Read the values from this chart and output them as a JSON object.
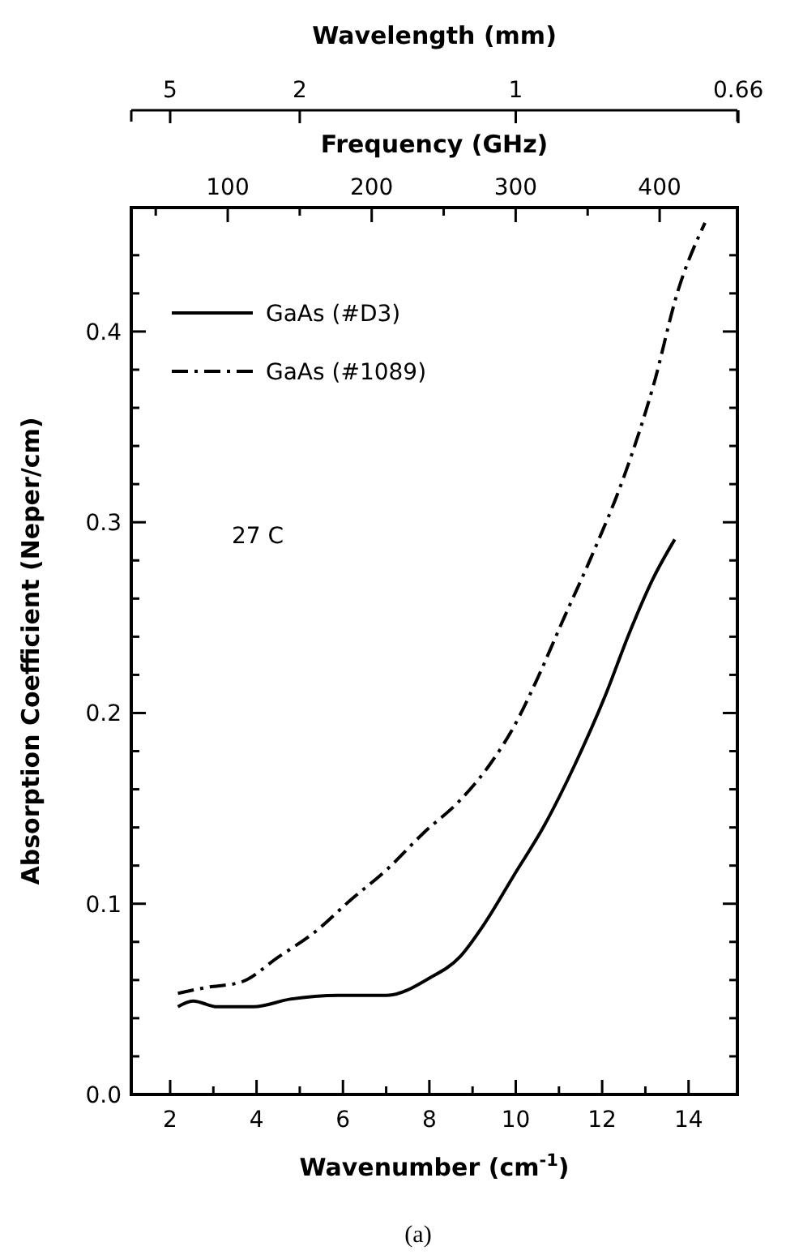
{
  "chart_data": {
    "type": "line",
    "xlabel": "Wavenumber (cm$^{-1}$)",
    "ylabel": "Absorption Coefficient (Neper/cm)",
    "x2label": "Frequency (GHz)",
    "xlim": [
      1.1,
      15.13
    ],
    "xticks": [
      {
        "value": 2,
        "label": "2"
      },
      {
        "value": 3,
        "label": null
      },
      {
        "value": 4,
        "label": "4"
      },
      {
        "value": 5,
        "label": null
      },
      {
        "value": 6,
        "label": "6"
      },
      {
        "value": 7,
        "label": null
      },
      {
        "value": 8,
        "label": "8"
      },
      {
        "value": 9,
        "label": null
      },
      {
        "value": 10,
        "label": "10"
      },
      {
        "value": 11,
        "label": null
      },
      {
        "value": 12,
        "label": "12"
      },
      {
        "value": 13,
        "label": null
      },
      {
        "value": 14,
        "label": "14"
      }
    ],
    "ylim": [
      0,
      0.465
    ],
    "yticks": [
      {
        "value": 0,
        "label": "0.0"
      },
      {
        "value": 0.02,
        "label": null
      },
      {
        "value": 0.04,
        "label": null
      },
      {
        "value": 0.06,
        "label": null
      },
      {
        "value": 0.08,
        "label": null
      },
      {
        "value": 0.1,
        "label": "0.1"
      },
      {
        "value": 0.12,
        "label": null
      },
      {
        "value": 0.14,
        "label": null
      },
      {
        "value": 0.16,
        "label": null
      },
      {
        "value": 0.18,
        "label": null
      },
      {
        "value": 0.2,
        "label": "0.2"
      },
      {
        "value": 0.22,
        "label": null
      },
      {
        "value": 0.24,
        "label": null
      },
      {
        "value": 0.26,
        "label": null
      },
      {
        "value": 0.28,
        "label": null
      },
      {
        "value": 0.3,
        "label": "0.3"
      },
      {
        "value": 0.32,
        "label": null
      },
      {
        "value": 0.34,
        "label": null
      },
      {
        "value": 0.36,
        "label": null
      },
      {
        "value": 0.38,
        "label": null
      },
      {
        "value": 0.4,
        "label": "0.4"
      },
      {
        "value": 0.42,
        "label": null
      },
      {
        "value": 0.44,
        "label": null
      }
    ],
    "title": "Wavelength (mm)",
    "x2lim": [
      33,
      454
    ],
    "x2ticks": [
      {
        "value": 50,
        "label": null
      },
      100,
      {
        "value": 150,
        "label": null
      },
      200,
      {
        "value": 250,
        "label": null
      },
      300,
      {
        "value": 350,
        "label": null
      },
      400
    ],
    "legend": "top left",
    "grid": false,
    "annotations": [
      "27 C",
      "(a)",
      "5",
      "2",
      "1",
      "0.66"
    ],
    "series": [
      {
        "name": "GaAs (#D3)",
        "color": "#000000",
        "line_style": "solid",
        "x": [
          2.18,
          2.53,
          3.09,
          3.93,
          4.78,
          5.9,
          7.02,
          8.0,
          8.7,
          9.26,
          9.96,
          10.66,
          11.37,
          12.07,
          12.63,
          13.19,
          13.68
        ],
        "values": [
          0.046,
          0.049,
          0.046,
          0.046,
          0.05,
          0.052,
          0.052,
          0.061,
          0.072,
          0.089,
          0.115,
          0.141,
          0.173,
          0.209,
          0.242,
          0.271,
          0.291
        ]
      },
      {
        "name": "GaAs (#1089)",
        "color": "#000000",
        "line_style": "dashdot",
        "x": [
          2.18,
          2.81,
          3.65,
          4.5,
          5.34,
          6.18,
          7.02,
          7.86,
          8.7,
          9.4,
          9.96,
          10.52,
          11.08,
          11.79,
          12.49,
          13.19,
          13.75,
          14.38
        ],
        "values": [
          0.053,
          0.056,
          0.059,
          0.072,
          0.085,
          0.102,
          0.118,
          0.137,
          0.154,
          0.173,
          0.193,
          0.219,
          0.248,
          0.284,
          0.323,
          0.372,
          0.421,
          0.457
        ]
      }
    ]
  }
}
